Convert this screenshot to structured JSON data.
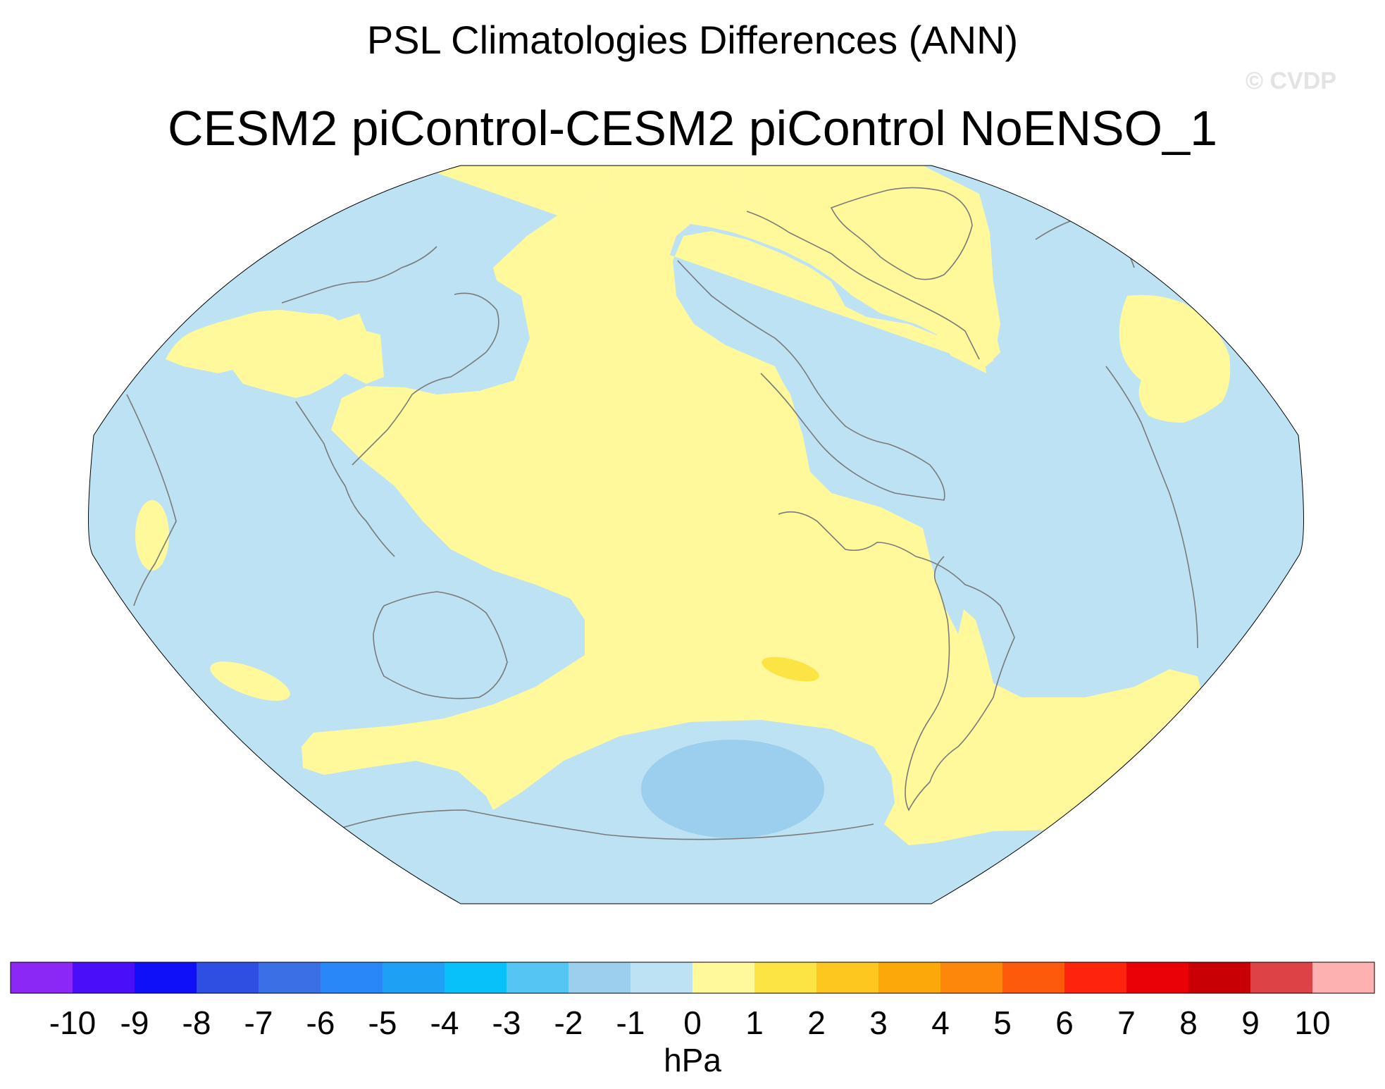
{
  "title": "PSL Climatologies Differences (ANN)",
  "subtitle": "CESM2 piControl-CESM2 piControl NoENSO_1",
  "watermark": "© CVDP",
  "map": {
    "projection": "Robinson",
    "center_longitude": 180,
    "field": "PSL difference",
    "colors": {
      "ocean_background": "#bde2f4",
      "coastline": "#7a7a7a",
      "positive_0_to_1": "#fff99c",
      "positive_1_to_2": "#fde445",
      "negative_m1_to_0": "#bde2f4",
      "negative_m2_to_m1": "#9ccfed"
    }
  },
  "colorbar": {
    "units": "hPa",
    "colors": [
      "#8b28f5",
      "#4a0ef8",
      "#1010f8",
      "#2f4fe3",
      "#3b6fe6",
      "#2987f7",
      "#1ea1f5",
      "#08c1f9",
      "#55c5f3",
      "#9ccfed",
      "#bde2f4",
      "#fff99c",
      "#fde445",
      "#fdc71f",
      "#fca70a",
      "#fd870a",
      "#fd5a0b",
      "#fd230d",
      "#ea0007",
      "#c80006",
      "#dc4246",
      "#feb1b1"
    ],
    "labels": [
      "-10",
      "-9",
      "-8",
      "-7",
      "-6",
      "-5",
      "-4",
      "-3",
      "-2",
      "-1",
      "0",
      "1",
      "2",
      "3",
      "4",
      "5",
      "6",
      "7",
      "8",
      "9",
      "10"
    ]
  }
}
